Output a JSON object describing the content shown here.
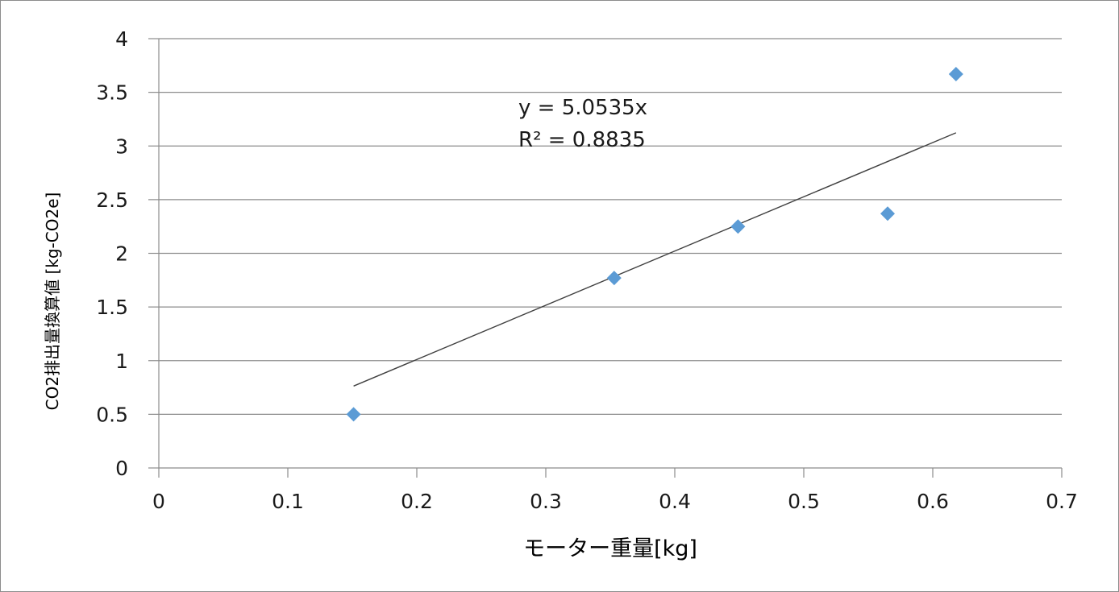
{
  "chart_data": {
    "type": "scatter",
    "title": "",
    "xlabel": "モーター重量[kg]",
    "ylabel": "CO2排出量換算値 [kg-CO2e]",
    "xlim": [
      0,
      0.7
    ],
    "ylim": [
      0,
      4
    ],
    "x_ticks": [
      "0",
      "0.1",
      "0.2",
      "0.3",
      "0.4",
      "0.5",
      "0.6",
      "0.7"
    ],
    "y_ticks": [
      "0",
      "0.5",
      "1",
      "1.5",
      "2",
      "2.5",
      "3",
      "3.5",
      "4"
    ],
    "grid": "horizontal",
    "legend": "none",
    "series": [
      {
        "marker": "diamond",
        "color": "#5b9bd5",
        "points": [
          {
            "x": 0.151,
            "y": 0.5
          },
          {
            "x": 0.353,
            "y": 1.77
          },
          {
            "x": 0.449,
            "y": 2.25
          },
          {
            "x": 0.565,
            "y": 2.37
          },
          {
            "x": 0.618,
            "y": 3.67
          }
        ]
      }
    ],
    "trendline": {
      "type": "linear",
      "slope": 5.0535,
      "intercept": 0,
      "x_range": [
        0.151,
        0.618
      ],
      "equation": "y = 5.0535x",
      "r_squared": "R² = 0.8835",
      "color": "#404040"
    }
  }
}
